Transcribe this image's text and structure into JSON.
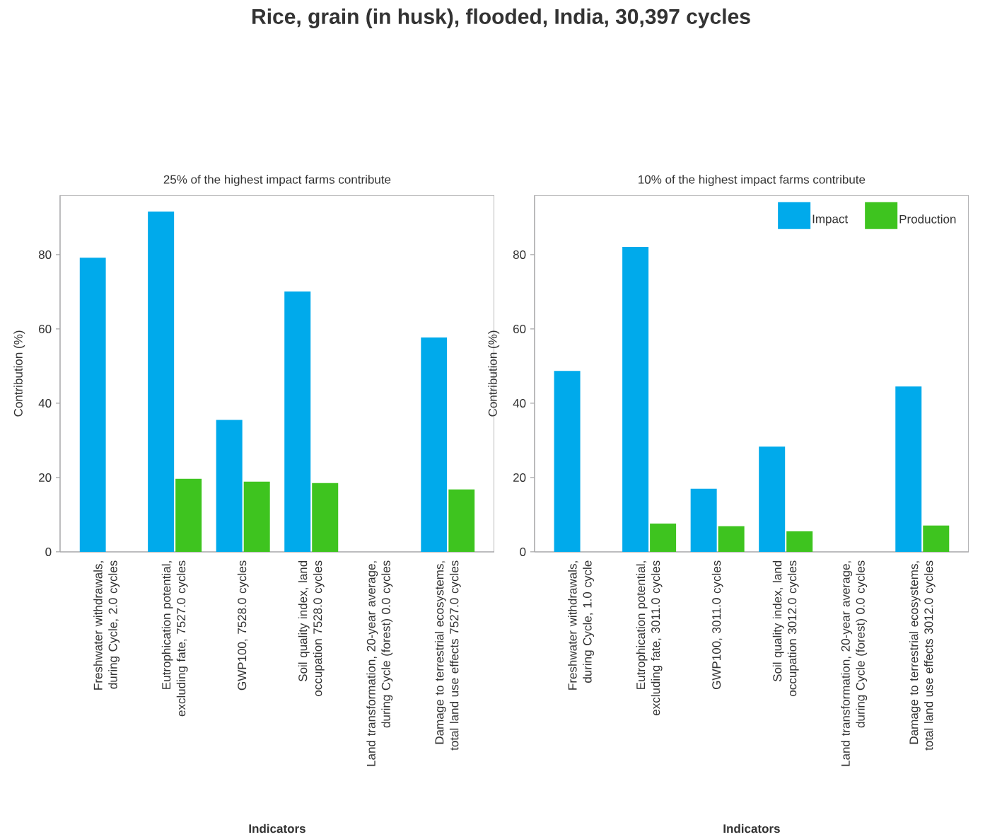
{
  "chart_data": [
    {
      "type": "bar",
      "title": "Rice, grain (in husk), flooded, India, 30,397 cycles",
      "subtitle": "25% of the highest impact farms contribute",
      "xlabel": "Indicators",
      "ylabel": "Contribution (%)",
      "categories": [
        "Freshwater withdrawals, during Cycle, 2.0 cycles",
        "Eutrophication potential, excluding fate, 7527.0 cycles",
        "GWP100, 7528.0 cycles",
        "Soil quality index, land occupation 7528.0 cycles",
        "Land transformation, 20-year average, during Cycle (forest) 0.0 cycles",
        "Damage to terrestrial ecosystems, total land use effects 7527.0 cycles"
      ],
      "series": [
        {
          "color": "#00aaeb",
          "values": [
            79.2,
            91.6,
            35.5,
            70.1,
            0,
            57.7
          ]
        },
        {
          "color": "#3ec41f",
          "values": [
            0,
            19.7,
            18.9,
            18.5,
            0,
            16.8
          ]
        }
      ],
      "ylim": [
        0,
        96
      ],
      "yticks": [
        0,
        20,
        40,
        60,
        80
      ],
      "grid": false,
      "legend": false
    },
    {
      "type": "bar",
      "subtitle": "10% of the highest impact farms contribute",
      "xlabel": "Indicators",
      "ylabel": "Contribution (%)",
      "categories": [
        "Freshwater withdrawals, during Cycle, 1.0 cycle",
        "Eutrophication potential, excluding fate, 3011.0 cycles",
        "GWP100, 3011.0 cycles",
        "Soil quality index, land occupation 3012.0 cycles",
        "Land transformation, 20-year average, during Cycle (forest) 0.0 cycles",
        "Damage to terrestrial ecosystems, total land use effects 3012.0 cycles"
      ],
      "series": [
        {
          "name": "Impact",
          "color": "#00aaeb",
          "values": [
            48.7,
            82.1,
            17.0,
            28.3,
            0,
            44.5
          ]
        },
        {
          "name": "Production",
          "color": "#3ec41f",
          "values": [
            0,
            7.6,
            6.9,
            5.5,
            0,
            7.1
          ]
        }
      ],
      "ylim": [
        0,
        96
      ],
      "yticks": [
        0,
        20,
        40,
        60,
        80
      ],
      "grid": false,
      "legend": "top right"
    }
  ]
}
